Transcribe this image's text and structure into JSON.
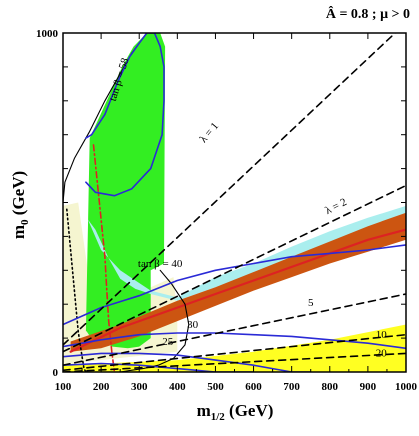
{
  "chart_data": {
    "type": "area",
    "title": "Â = 0.8 ; μ > 0",
    "xlabel": "m1/2 (GeV)",
    "ylabel": "m0 (GeV)",
    "xlim": [
      100,
      1000
    ],
    "ylim": [
      0,
      1000
    ],
    "x_ticks": [
      100,
      200,
      300,
      400,
      500,
      600,
      700,
      800,
      900,
      1000
    ],
    "y_ticks": [
      0,
      1000
    ],
    "y_tick_labels": [
      "0",
      "1000"
    ],
    "colors": {
      "pale_yellow": "#f5f5d0",
      "green": "#33ee22",
      "cyan": "#aaeeee",
      "brown": "#cc5511",
      "yellow": "#ffff22",
      "red": "#dd2222",
      "blue": "#2a2ad6",
      "black": "#000000"
    },
    "series": [
      {
        "name": "",
        "style": "pale-yellow-region",
        "x": [
          100,
          100,
          140,
          175,
          250,
          350,
          390,
          400,
          400,
          160,
          100
        ],
        "y": [
          0,
          490,
          500,
          220,
          210,
          260,
          280,
          170,
          60,
          30,
          0
        ]
      },
      {
        "name": "",
        "style": "green-region",
        "x": [
          160,
          170,
          215,
          255,
          285,
          320,
          355,
          368,
          365,
          330,
          330,
          300,
          270,
          230,
          190,
          168,
          162
        ],
        "y": [
          120,
          690,
          800,
          900,
          960,
          1000,
          1000,
          960,
          320,
          300,
          100,
          75,
          70,
          75,
          95,
          110,
          120
        ]
      },
      {
        "name": "",
        "style": "cyan-band",
        "x": [
          165,
          200,
          250,
          290,
          330,
          400,
          500,
          600,
          700,
          800,
          900,
          1000,
          1000,
          900,
          800,
          700,
          600,
          500,
          400,
          330,
          290,
          250,
          220,
          185,
          165
        ],
        "y": [
          450,
          360,
          300,
          270,
          240,
          220,
          280,
          320,
          370,
          415,
          455,
          490,
          455,
          415,
          375,
          335,
          290,
          250,
          210,
          230,
          245,
          275,
          335,
          420,
          450
        ]
      },
      {
        "name": "",
        "style": "brown-band",
        "x": [
          120,
          250,
          400,
          500,
          600,
          700,
          800,
          900,
          1000,
          1000,
          900,
          800,
          700,
          600,
          500,
          400,
          300,
          200,
          120
        ],
        "y": [
          90,
          140,
          210,
          250,
          295,
          340,
          385,
          430,
          470,
          390,
          355,
          320,
          280,
          240,
          195,
          150,
          105,
          70,
          60
        ]
      },
      {
        "name": "",
        "style": "red-line",
        "x": [
          120,
          250,
          400,
          500,
          600,
          700,
          800,
          900,
          1000
        ],
        "y": [
          60,
          130,
          190,
          230,
          270,
          310,
          350,
          390,
          420
        ]
      },
      {
        "name": "",
        "style": "yellow-region",
        "x": [
          100,
          400,
          600,
          800,
          1000,
          1000,
          100
        ],
        "y": [
          20,
          35,
          60,
          95,
          140,
          0,
          0
        ]
      },
      {
        "name": "",
        "style": "red-dashdot",
        "x": [
          180,
          190,
          200,
          210,
          215,
          220,
          228,
          235
        ],
        "y": [
          670,
          560,
          450,
          340,
          240,
          150,
          60,
          0
        ]
      },
      {
        "name": "",
        "style": "black-solid-boundary",
        "x": [
          100,
          105,
          130,
          170,
          210,
          250,
          280,
          320,
          350
        ],
        "y": [
          500,
          560,
          630,
          710,
          800,
          880,
          940,
          1000,
          1000
        ]
      },
      {
        "name": "",
        "style": "black-solid-contour",
        "x": [
          355,
          385,
          420,
          430,
          420,
          390,
          350,
          310,
          250,
          100
        ],
        "y": [
          300,
          260,
          200,
          140,
          80,
          40,
          20,
          10,
          0,
          0
        ]
      },
      {
        "name": "",
        "style": "black-dotted",
        "x": [
          110,
          115,
          120,
          125,
          130,
          135,
          140,
          148,
          155,
          160
        ],
        "y": [
          480,
          420,
          360,
          300,
          240,
          180,
          120,
          60,
          10,
          0
        ]
      },
      {
        "name": "",
        "style": "blue-tanb58",
        "x": [
          160,
          175,
          210,
          245,
          275,
          300,
          320,
          340,
          355,
          365,
          365,
          360,
          330,
          280,
          235,
          185,
          160
        ],
        "y": [
          690,
          700,
          760,
          860,
          930,
          970,
          1000,
          1000,
          960,
          900,
          800,
          700,
          600,
          540,
          520,
          530,
          560
        ]
      },
      {
        "name": "",
        "style": "blue-tanb40",
        "x": [
          100,
          200,
          300,
          400,
          500,
          600,
          700,
          800,
          900,
          1000
        ],
        "y": [
          140,
          190,
          225,
          270,
          300,
          320,
          340,
          350,
          360,
          375
        ]
      },
      {
        "name": "",
        "style": "blue-tanb30",
        "x": [
          100,
          200,
          300,
          400,
          500,
          600,
          700,
          800,
          900,
          1000
        ],
        "y": [
          75,
          95,
          110,
          115,
          115,
          110,
          105,
          95,
          85,
          70
        ]
      },
      {
        "name": "",
        "style": "blue-tanb25",
        "x": [
          100,
          200,
          300,
          400,
          500,
          600,
          650,
          700,
          750
        ],
        "y": [
          45,
          55,
          55,
          50,
          35,
          20,
          10,
          0,
          0
        ]
      },
      {
        "name": "",
        "style": "blue-tanb20",
        "x": [
          100,
          200,
          300,
          400,
          500,
          550,
          600
        ],
        "y": [
          20,
          25,
          20,
          10,
          0,
          0,
          0
        ]
      },
      {
        "name": "",
        "style": "dashed-lambda1",
        "x": [
          100,
          1000
        ],
        "y": [
          80,
          1030
        ]
      },
      {
        "name": "",
        "style": "dashed-lambda2",
        "x": [
          100,
          1000
        ],
        "y": [
          60,
          550
        ]
      },
      {
        "name": "",
        "style": "dashed-tanb5",
        "x": [
          100,
          1000
        ],
        "y": [
          20,
          230
        ]
      },
      {
        "name": "",
        "style": "dashed-tanb10",
        "x": [
          100,
          1000
        ],
        "y": [
          5,
          110
        ]
      },
      {
        "name": "",
        "style": "dashed-tanb20",
        "x": [
          100,
          1000
        ],
        "y": [
          0,
          55
        ]
      }
    ],
    "annotations": [
      {
        "text": "tan β = 58",
        "x": 255,
        "y": 860,
        "angle": -73
      },
      {
        "text": "λ = 1",
        "x": 490,
        "y": 700,
        "angle": -50
      },
      {
        "text": "λ = 2",
        "x": 820,
        "y": 480,
        "angle": -27
      },
      {
        "text": "tan β = 40",
        "x": 355,
        "y": 310,
        "angle": 0
      },
      {
        "text": "5",
        "x": 750,
        "y": 195,
        "angle": 0
      },
      {
        "text": "30",
        "x": 440,
        "y": 130,
        "angle": 0
      },
      {
        "text": "25",
        "x": 375,
        "y": 80,
        "angle": 0
      },
      {
        "text": "10",
        "x": 935,
        "y": 100,
        "angle": 0
      },
      {
        "text": "20",
        "x": 935,
        "y": 45,
        "angle": 0
      }
    ]
  }
}
